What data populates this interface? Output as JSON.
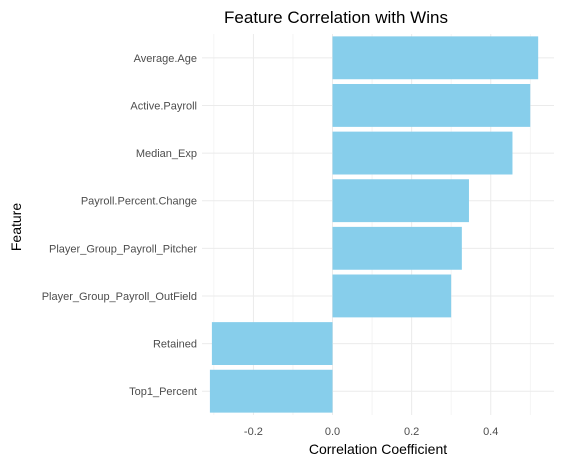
{
  "chart_data": {
    "type": "bar",
    "orientation": "horizontal",
    "title": "Feature Correlation with Wins",
    "xlabel": "Correlation Coefficient",
    "ylabel": "Feature",
    "categories": [
      "Average.Age",
      "Active.Payroll",
      "Median_Exp",
      "Payroll.Percent.Change",
      "Player_Group_Payroll_Pitcher",
      "Player_Group_Payroll_OutField",
      "Retained",
      "Top1_Percent"
    ],
    "values": [
      0.52,
      0.5,
      0.455,
      0.345,
      0.327,
      0.3,
      -0.305,
      -0.31
    ],
    "xlim": [
      -0.33,
      0.56
    ],
    "x_ticks": [
      -0.2,
      0.0,
      0.2,
      0.4
    ],
    "x_tick_labels": [
      "-0.2",
      "0.0",
      "0.2",
      "0.4"
    ],
    "bar_color": "#87ceeb",
    "grid": true,
    "legend": "none"
  }
}
